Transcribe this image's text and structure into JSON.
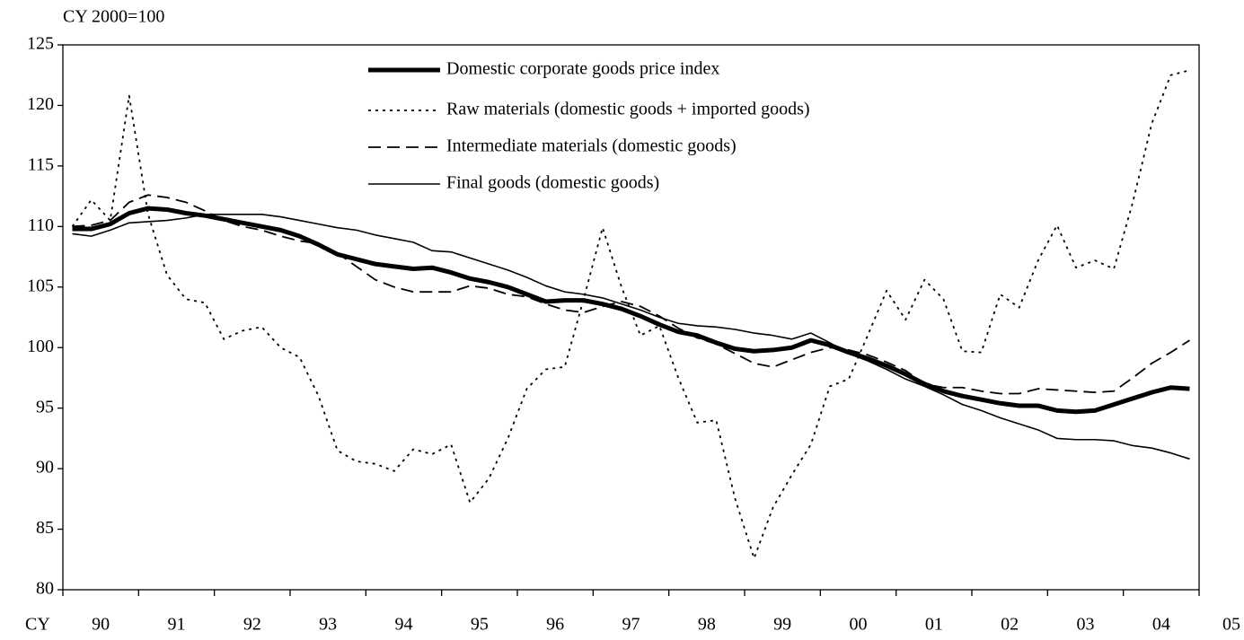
{
  "chart_data": {
    "type": "line",
    "ylabel": "CY 2000=100",
    "xlabel": "CY",
    "xlim": [
      1990,
      2005
    ],
    "xticks": [
      {
        "value": 1990,
        "label": "90"
      },
      {
        "value": 1991,
        "label": "91"
      },
      {
        "value": 1992,
        "label": "92"
      },
      {
        "value": 1993,
        "label": "93"
      },
      {
        "value": 1994,
        "label": "94"
      },
      {
        "value": 1995,
        "label": "95"
      },
      {
        "value": 1996,
        "label": "96"
      },
      {
        "value": 1997,
        "label": "97"
      },
      {
        "value": 1998,
        "label": "98"
      },
      {
        "value": 1999,
        "label": "99"
      },
      {
        "value": 2000,
        "label": "00"
      },
      {
        "value": 2001,
        "label": "01"
      },
      {
        "value": 2002,
        "label": "02"
      },
      {
        "value": 2003,
        "label": "03"
      },
      {
        "value": 2004,
        "label": "04"
      },
      {
        "value": 2005,
        "label": "05"
      }
    ],
    "ylim": [
      80,
      125
    ],
    "yticks": [
      80,
      85,
      90,
      95,
      100,
      105,
      110,
      115,
      120,
      125
    ],
    "grid": false,
    "legend": "top",
    "series": [
      {
        "name": "Domestic corporate goods price index",
        "color": "#000000",
        "linestyle": "thick",
        "values": [
          109.8,
          109.8,
          110.2,
          111.1,
          111.5,
          111.4,
          111.1,
          110.9,
          110.6,
          110.3,
          110.0,
          109.7,
          109.2,
          108.5,
          107.7,
          107.3,
          106.9,
          106.7,
          106.5,
          106.6,
          106.2,
          105.7,
          105.4,
          105.0,
          104.4,
          103.8,
          103.9,
          103.9,
          103.6,
          103.2,
          102.6,
          101.9,
          101.3,
          101.0,
          100.4,
          99.9,
          99.7,
          99.8,
          100.0,
          100.6,
          100.2,
          99.6,
          99.1,
          98.5,
          97.8,
          97.0,
          96.4,
          96.0,
          95.7,
          95.4,
          95.2,
          95.2,
          94.8,
          94.7,
          94.8,
          95.3,
          95.8,
          96.3,
          96.7,
          96.6
        ]
      },
      {
        "name": "Raw materials (domestic goods + imported goods)",
        "color": "#000000",
        "linestyle": "dotted",
        "values": [
          110.0,
          112.2,
          110.5,
          120.8,
          111.0,
          106.0,
          104.0,
          103.7,
          100.7,
          101.4,
          101.7,
          100.0,
          99.2,
          96.0,
          91.5,
          90.6,
          90.4,
          89.8,
          91.6,
          91.2,
          92.0,
          87.2,
          89.2,
          92.5,
          96.6,
          98.2,
          98.4,
          104.0,
          109.9,
          105.0,
          101.0,
          101.8,
          97.5,
          93.8,
          94.0,
          87.5,
          82.6,
          86.8,
          89.5,
          92.0,
          96.8,
          97.4,
          101.0,
          104.7,
          102.3,
          105.6,
          104.0,
          99.7,
          99.6,
          104.4,
          103.3,
          107.2,
          110.1,
          106.6,
          107.2,
          106.5,
          112.0,
          118.5,
          122.5,
          122.9
        ]
      },
      {
        "name": "Intermediate materials (domestic goods)",
        "color": "#000000",
        "linestyle": "dashed",
        "values": [
          110.0,
          110.1,
          110.5,
          112.0,
          112.6,
          112.4,
          112.0,
          111.3,
          110.5,
          110.0,
          109.7,
          109.2,
          108.8,
          108.6,
          107.8,
          106.7,
          105.6,
          105.0,
          104.6,
          104.6,
          104.6,
          105.1,
          104.9,
          104.4,
          104.2,
          103.6,
          103.1,
          102.9,
          103.4,
          103.8,
          103.4,
          102.6,
          101.6,
          100.8,
          100.3,
          99.5,
          98.7,
          98.4,
          99.0,
          99.6,
          100.0,
          99.8,
          99.4,
          98.8,
          98.1,
          97.0,
          96.7,
          96.7,
          96.4,
          96.2,
          96.2,
          96.6,
          96.5,
          96.4,
          96.3,
          96.4,
          97.5,
          98.7,
          99.6,
          100.6
        ]
      },
      {
        "name": "Final goods (domestic goods)",
        "color": "#000000",
        "linestyle": "solid",
        "values": [
          109.4,
          109.2,
          109.7,
          110.3,
          110.4,
          110.5,
          110.7,
          111.0,
          111.0,
          111.0,
          111.0,
          110.8,
          110.5,
          110.2,
          109.9,
          109.7,
          109.3,
          109.0,
          108.7,
          108.0,
          107.9,
          107.4,
          106.9,
          106.4,
          105.8,
          105.1,
          104.6,
          104.4,
          104.1,
          103.6,
          103.1,
          102.5,
          102.0,
          101.8,
          101.7,
          101.5,
          101.2,
          101.0,
          100.7,
          101.2,
          100.4,
          99.5,
          98.9,
          98.2,
          97.4,
          96.8,
          96.1,
          95.3,
          94.8,
          94.2,
          93.7,
          93.2,
          92.5,
          92.4,
          92.4,
          92.3,
          91.9,
          91.7,
          91.3,
          90.8
        ]
      }
    ]
  }
}
